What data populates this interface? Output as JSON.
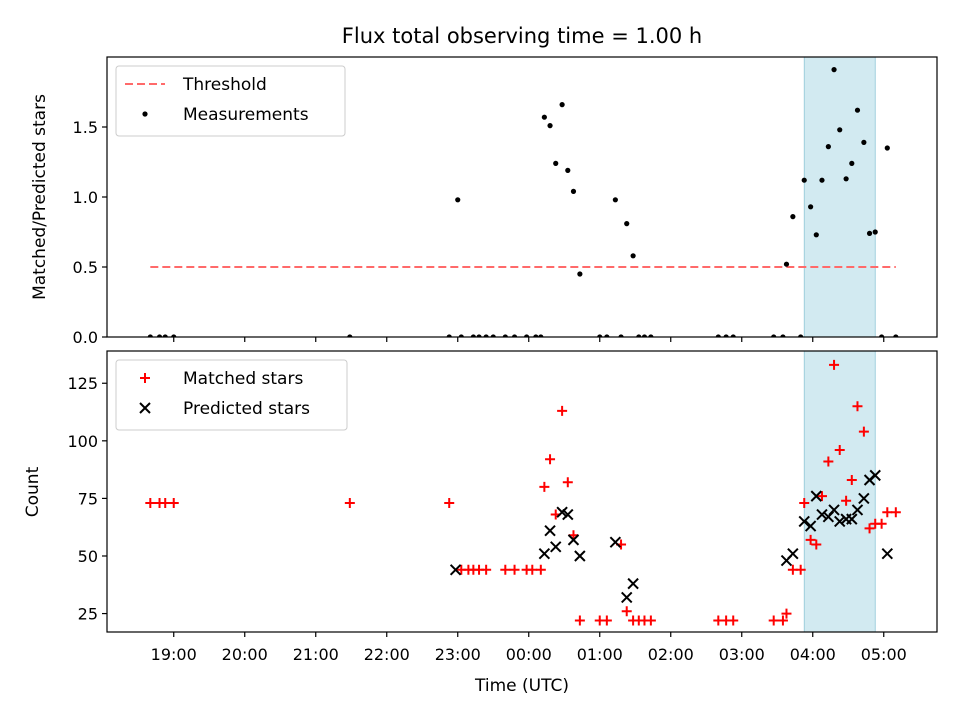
{
  "chart_data": [
    {
      "type": "scatter",
      "title": "Flux total observing time = 1.00 h",
      "xlabel": "",
      "ylabel": "Matched/Predicted stars",
      "x_range_hours": [
        18.06,
        29.75
      ],
      "ylim": [
        0,
        2.0
      ],
      "yticks": [
        0.0,
        0.5,
        1.0,
        1.5
      ],
      "ytick_labels": [
        "0.0",
        "0.5",
        "1.0",
        "1.5"
      ],
      "shaded_span_hours": [
        27.88,
        28.88
      ],
      "shaded_color": "#add8e6",
      "threshold": {
        "name": "Threshold",
        "value": 0.5,
        "x_start": 18.67,
        "x_end": 29.17,
        "color": "#ff6a6a",
        "style": "dashed"
      },
      "legend": [
        "Threshold",
        "Measurements"
      ],
      "series": [
        {
          "name": "Measurements",
          "marker": "dot",
          "color": "#000000",
          "points": [
            [
              18.67,
              0
            ],
            [
              18.8,
              0
            ],
            [
              18.88,
              0
            ],
            [
              19.0,
              0
            ],
            [
              21.48,
              0
            ],
            [
              22.88,
              0
            ],
            [
              23.0,
              0.98
            ],
            [
              23.05,
              0
            ],
            [
              23.22,
              0
            ],
            [
              23.3,
              0
            ],
            [
              23.4,
              0
            ],
            [
              23.5,
              0
            ],
            [
              23.67,
              0
            ],
            [
              23.8,
              0
            ],
            [
              23.97,
              0
            ],
            [
              24.1,
              0
            ],
            [
              24.17,
              0
            ],
            [
              24.22,
              1.57
            ],
            [
              24.3,
              1.51
            ],
            [
              24.38,
              1.24
            ],
            [
              24.47,
              1.66
            ],
            [
              24.55,
              1.19
            ],
            [
              24.63,
              1.04
            ],
            [
              24.72,
              0.45
            ],
            [
              25.0,
              0
            ],
            [
              25.1,
              0
            ],
            [
              25.22,
              0.98
            ],
            [
              25.3,
              0
            ],
            [
              25.38,
              0.81
            ],
            [
              25.47,
              0.58
            ],
            [
              25.55,
              0
            ],
            [
              25.63,
              0
            ],
            [
              25.72,
              0
            ],
            [
              26.67,
              0
            ],
            [
              26.78,
              0
            ],
            [
              26.88,
              0
            ],
            [
              27.45,
              0
            ],
            [
              27.58,
              0
            ],
            [
              27.63,
              0.52
            ],
            [
              27.72,
              0.86
            ],
            [
              27.83,
              0
            ],
            [
              27.88,
              1.12
            ],
            [
              27.97,
              0.93
            ],
            [
              28.05,
              0.73
            ],
            [
              28.13,
              1.12
            ],
            [
              28.22,
              1.36
            ],
            [
              28.3,
              1.91
            ],
            [
              28.38,
              1.48
            ],
            [
              28.47,
              1.13
            ],
            [
              28.55,
              1.24
            ],
            [
              28.63,
              1.62
            ],
            [
              28.72,
              1.39
            ],
            [
              28.8,
              0.74
            ],
            [
              28.88,
              0.75
            ],
            [
              28.97,
              0
            ],
            [
              29.05,
              1.35
            ],
            [
              29.17,
              0
            ]
          ]
        }
      ]
    },
    {
      "type": "scatter",
      "title": "",
      "xlabel": "Time (UTC)",
      "ylabel": "Count",
      "x_range_hours": [
        18.06,
        29.75
      ],
      "ylim": [
        17,
        139
      ],
      "yticks": [
        25,
        50,
        75,
        100,
        125
      ],
      "ytick_labels": [
        "25",
        "50",
        "75",
        "100",
        "125"
      ],
      "xticks_hours": [
        19,
        20,
        21,
        22,
        23,
        24,
        25,
        26,
        27,
        28,
        29
      ],
      "xtick_labels": [
        "19:00",
        "20:00",
        "21:00",
        "22:00",
        "23:00",
        "00:00",
        "01:00",
        "02:00",
        "03:00",
        "04:00",
        "05:00"
      ],
      "shaded_span_hours": [
        27.88,
        28.88
      ],
      "shaded_color": "#add8e6",
      "legend": [
        "Matched stars",
        "Predicted stars"
      ],
      "series": [
        {
          "name": "Matched stars",
          "marker": "plus",
          "color": "#ff0000",
          "points": [
            [
              18.67,
              73
            ],
            [
              18.8,
              73
            ],
            [
              18.88,
              73
            ],
            [
              19.0,
              73
            ],
            [
              21.48,
              73
            ],
            [
              22.88,
              73
            ],
            [
              23.05,
              44
            ],
            [
              23.15,
              44
            ],
            [
              23.22,
              44
            ],
            [
              23.3,
              44
            ],
            [
              23.4,
              44
            ],
            [
              23.67,
              44
            ],
            [
              23.8,
              44
            ],
            [
              23.97,
              44
            ],
            [
              24.05,
              44
            ],
            [
              24.17,
              44
            ],
            [
              24.22,
              80
            ],
            [
              24.3,
              92
            ],
            [
              24.38,
              68
            ],
            [
              24.47,
              113
            ],
            [
              24.55,
              82
            ],
            [
              24.63,
              59
            ],
            [
              24.72,
              22
            ],
            [
              25.0,
              22
            ],
            [
              25.1,
              22
            ],
            [
              25.3,
              55
            ],
            [
              25.38,
              26
            ],
            [
              25.47,
              22
            ],
            [
              25.55,
              22
            ],
            [
              25.63,
              22
            ],
            [
              25.72,
              22
            ],
            [
              26.67,
              22
            ],
            [
              26.78,
              22
            ],
            [
              26.88,
              22
            ],
            [
              27.45,
              22
            ],
            [
              27.58,
              22
            ],
            [
              27.63,
              25
            ],
            [
              27.72,
              44
            ],
            [
              27.83,
              44
            ],
            [
              27.88,
              73
            ],
            [
              27.97,
              57
            ],
            [
              28.05,
              55
            ],
            [
              28.13,
              76
            ],
            [
              28.22,
              91
            ],
            [
              28.3,
              133
            ],
            [
              28.38,
              96
            ],
            [
              28.47,
              74
            ],
            [
              28.55,
              83
            ],
            [
              28.63,
              115
            ],
            [
              28.72,
              104
            ],
            [
              28.8,
              62
            ],
            [
              28.88,
              64
            ],
            [
              28.97,
              64
            ],
            [
              29.05,
              69
            ],
            [
              29.17,
              69
            ]
          ]
        },
        {
          "name": "Predicted stars",
          "marker": "x",
          "color": "#000000",
          "points": [
            [
              22.97,
              44
            ],
            [
              24.22,
              51
            ],
            [
              24.3,
              61
            ],
            [
              24.38,
              54
            ],
            [
              24.47,
              69
            ],
            [
              24.55,
              68
            ],
            [
              24.63,
              57
            ],
            [
              24.72,
              50
            ],
            [
              25.22,
              56
            ],
            [
              25.38,
              32
            ],
            [
              25.47,
              38
            ],
            [
              27.63,
              48
            ],
            [
              27.72,
              51
            ],
            [
              27.88,
              65
            ],
            [
              27.97,
              63
            ],
            [
              28.05,
              76
            ],
            [
              28.13,
              68
            ],
            [
              28.22,
              67
            ],
            [
              28.3,
              70
            ],
            [
              28.38,
              65
            ],
            [
              28.47,
              66
            ],
            [
              28.55,
              66
            ],
            [
              28.63,
              70
            ],
            [
              28.72,
              75
            ],
            [
              28.8,
              83
            ],
            [
              28.88,
              85
            ],
            [
              29.05,
              51
            ]
          ]
        }
      ]
    }
  ]
}
